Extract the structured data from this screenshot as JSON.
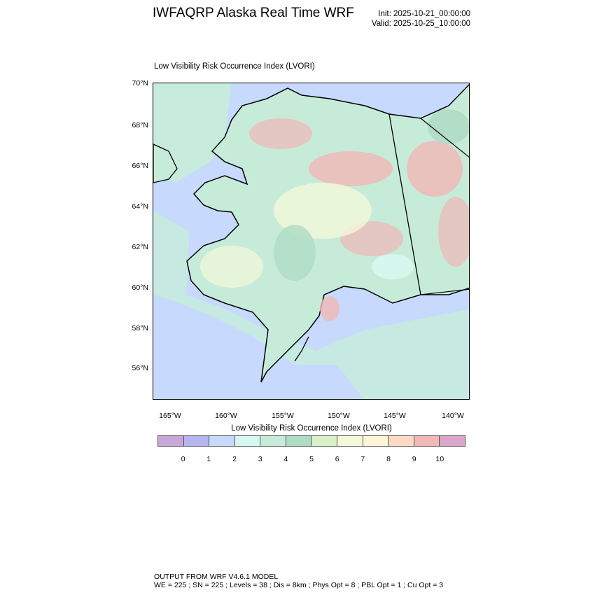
{
  "header": {
    "title": "IWFAQRP Alaska Real Time WRF",
    "init": "Init: 2025-10-21_00:00:00",
    "valid": "Valid: 2025-10-25_10:00:00"
  },
  "map": {
    "subtitle": "Low Visibility Risk Occurrence Index   (LVORI)",
    "lat_labels": [
      "70°N",
      "68°N",
      "66°N",
      "64°N",
      "62°N",
      "60°N",
      "58°N",
      "56°N"
    ],
    "lon_labels": [
      "165°W",
      "160°W",
      "155°W",
      "150°W",
      "145°W",
      "140°W"
    ]
  },
  "colorbar": {
    "title": "Low Visibility Risk Occurrence Index  (LVORI)",
    "labels": [
      "0",
      "1",
      "2",
      "3",
      "4",
      "5",
      "6",
      "7",
      "8",
      "9",
      "10"
    ],
    "colors": [
      "#c9a6da",
      "#b5b6ee",
      "#c7d9fc",
      "#d6f8f0",
      "#c6ecd9",
      "#afdcc4",
      "#d9f0c9",
      "#f3f9d9",
      "#fef5d9",
      "#fdd9c6",
      "#f1b8b5",
      "#dba6c9"
    ]
  },
  "footer": {
    "line1": "OUTPUT FROM WRF V4.6.1 MODEL",
    "line2": "WE = 225 ; SN = 225 ; Levels = 38 ; Dis = 8km ; Phys Opt = 8 ; PBL Opt = 1 ; Cu Opt = 3"
  }
}
